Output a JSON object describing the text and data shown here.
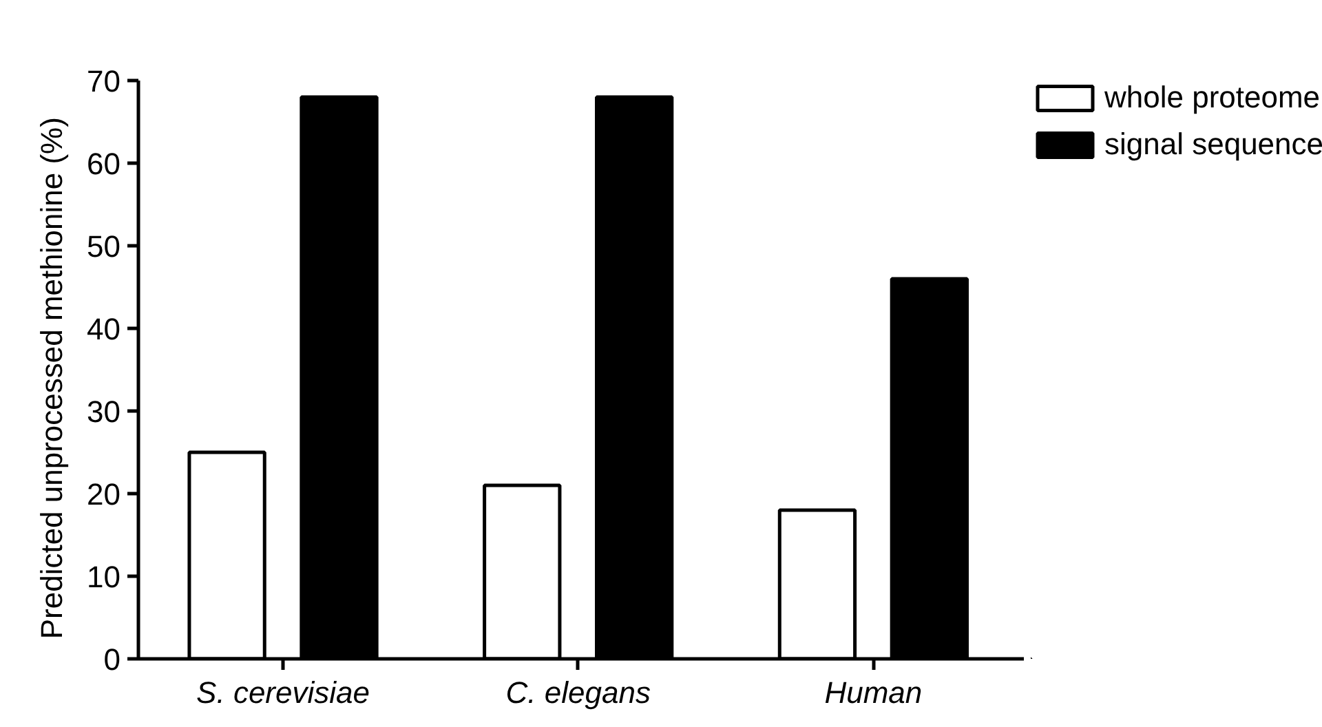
{
  "chart_data": {
    "type": "bar",
    "ylabel": "Predicted unprocessed methionine   (%)",
    "categories": [
      "S. cerevisiae",
      "C. elegans",
      "Human"
    ],
    "series": [
      {
        "name": "whole proteome",
        "color": "#ffffff",
        "values": [
          25,
          21,
          18
        ]
      },
      {
        "name": "signal sequence",
        "color": "#000000",
        "values": [
          68,
          68,
          46
        ]
      }
    ],
    "ylim": [
      0,
      70
    ],
    "yticks": [
      0,
      10,
      20,
      30,
      40,
      50,
      60,
      70
    ],
    "legend": "top right"
  }
}
